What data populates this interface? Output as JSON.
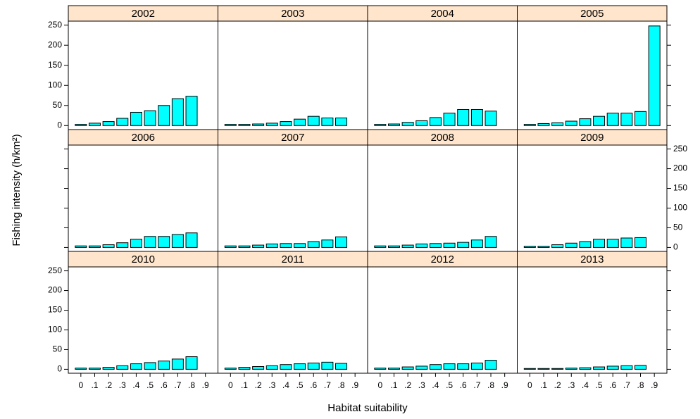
{
  "chart_data": {
    "type": "bar",
    "xlabel": "Habitat suitability",
    "ylabel": "Fishing intensity (h/km²)",
    "color": "#00ffff",
    "strip_color": "#ffe5cc",
    "categories": [
      "0",
      ".1",
      ".2",
      ".3",
      ".4",
      ".5",
      ".6",
      ".7",
      ".8",
      ".9"
    ],
    "ylim": [
      -10,
      260
    ],
    "yticks": [
      0,
      50,
      100,
      150,
      200,
      250
    ],
    "panels": [
      {
        "title": "2002",
        "values": [
          3,
          6,
          10,
          18,
          33,
          37,
          50,
          67,
          73,
          null
        ]
      },
      {
        "title": "2003",
        "values": [
          3,
          3,
          4,
          6,
          10,
          16,
          23,
          19,
          19,
          null
        ]
      },
      {
        "title": "2004",
        "values": [
          3,
          4,
          8,
          12,
          20,
          31,
          40,
          40,
          36,
          null
        ]
      },
      {
        "title": "2005",
        "values": [
          3,
          5,
          7,
          11,
          17,
          23,
          31,
          31,
          35,
          248
        ]
      },
      {
        "title": "2006",
        "values": [
          4,
          4,
          7,
          12,
          21,
          28,
          28,
          33,
          37,
          null
        ]
      },
      {
        "title": "2007",
        "values": [
          4,
          4,
          6,
          9,
          10,
          10,
          15,
          19,
          27,
          null
        ]
      },
      {
        "title": "2008",
        "values": [
          4,
          4,
          6,
          9,
          10,
          11,
          13,
          19,
          28,
          null
        ]
      },
      {
        "title": "2009",
        "values": [
          3,
          3,
          7,
          11,
          15,
          21,
          21,
          24,
          25,
          null
        ]
      },
      {
        "title": "2010",
        "values": [
          3,
          3,
          5,
          9,
          14,
          17,
          21,
          26,
          32,
          null
        ]
      },
      {
        "title": "2011",
        "values": [
          3,
          5,
          7,
          9,
          12,
          14,
          16,
          18,
          15,
          null
        ]
      },
      {
        "title": "2012",
        "values": [
          3,
          3,
          6,
          8,
          12,
          14,
          14,
          16,
          23,
          null
        ]
      },
      {
        "title": "2013",
        "values": [
          2,
          2,
          2,
          3,
          4,
          6,
          8,
          9,
          10,
          null
        ]
      }
    ]
  }
}
